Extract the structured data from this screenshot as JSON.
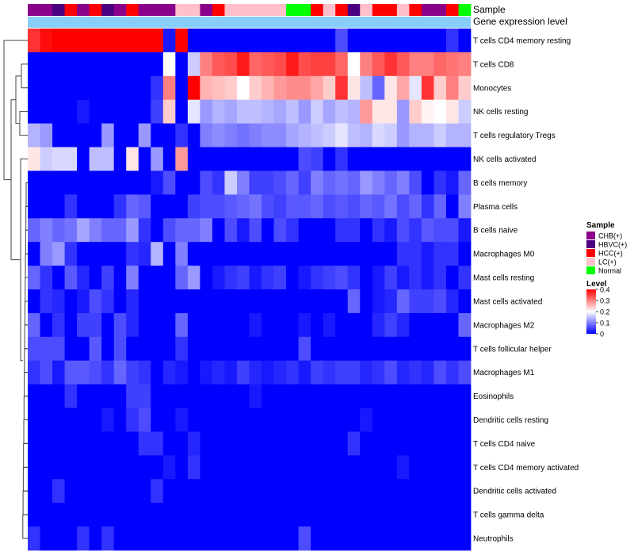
{
  "chart_data": {
    "type": "heatmap",
    "annotation_titles": [
      "Sample",
      "Gene expression level"
    ],
    "rows": [
      "T cells CD4 memory resting",
      "T cells CD8",
      "Monocytes",
      "NK cells resting",
      "T cells regulatory  Tregs",
      "NK cells activated",
      "B cells memory",
      "Plasma cells",
      "B cells naive",
      "Macrophages M0",
      "Mast cells resting",
      "Mast cells activated",
      "Macrophages M2",
      "T cells follicular helper",
      "Macrophages M1",
      "Eosinophils",
      "Dendritic cells resting",
      "T cells CD4 naive",
      "T cells CD4 memory activated",
      "Dendritic cells activated",
      "T cells gamma delta",
      "Neutrophils"
    ],
    "sample_groups": [
      "CHB(+)",
      "HBVC(+)",
      "HCC(+)",
      "LC(+)",
      "Normal"
    ],
    "group_colors": {
      "CHB(+)": "#8B008B",
      "HBVC(+)": "#4B0082",
      "HCC(+)": "#FF0000",
      "LC(+)": "#FFC0CB",
      "Normal": "#00FF00"
    },
    "column_groups": [
      "CHB(+)",
      "CHB(+)",
      "HBVC(+)",
      "HCC(+)",
      "CHB(+)",
      "HCC(+)",
      "HBVC(+)",
      "CHB(+)",
      "HCC(+)",
      "CHB(+)",
      "CHB(+)",
      "CHB(+)",
      "LC(+)",
      "LC(+)",
      "CHB(+)",
      "HCC(+)",
      "LC(+)",
      "LC(+)",
      "LC(+)",
      "LC(+)",
      "LC(+)",
      "Normal",
      "Normal",
      "HCC(+)",
      "LC(+)",
      "HCC(+)",
      "HBVC(+)",
      "LC(+)",
      "HCC(+)",
      "HCC(+)",
      "LC(+)",
      "HCC(+)",
      "CHB(+)",
      "CHB(+)",
      "HCC(+)",
      "Normal"
    ],
    "values": [
      [
        0.36,
        0.39,
        0.42,
        0.42,
        0.42,
        0.42,
        0.42,
        0.42,
        0.42,
        0.42,
        0.42,
        0.02,
        0.4,
        0,
        0,
        0,
        0,
        0,
        0,
        0,
        0,
        0,
        0,
        0,
        0,
        0.06,
        0,
        0,
        0,
        0,
        0,
        0,
        0,
        0,
        0.04,
        0
      ],
      [
        0,
        0,
        0,
        0,
        0,
        0,
        0,
        0,
        0,
        0,
        0,
        0.2,
        0,
        0.16,
        0.3,
        0.33,
        0.34,
        0.38,
        0.32,
        0.33,
        0.34,
        0.38,
        0.34,
        0.35,
        0.35,
        0.32,
        0.2,
        0.3,
        0.33,
        0.36,
        0.33,
        0.3,
        0.3,
        0.32,
        0.31,
        0.3
      ],
      [
        0,
        0,
        0,
        0,
        0,
        0,
        0,
        0,
        0,
        0,
        0.04,
        0.3,
        0,
        0.4,
        0.26,
        0.25,
        0.24,
        0.2,
        0.24,
        0.26,
        0.28,
        0.29,
        0.29,
        0.27,
        0.24,
        0.36,
        0.22,
        0.15,
        0.08,
        0.22,
        0.27,
        0.18,
        0.36,
        0.24,
        0.3,
        0.24
      ],
      [
        0,
        0,
        0,
        0,
        0.02,
        0,
        0,
        0,
        0,
        0,
        0.05,
        0.24,
        0,
        0.18,
        0.12,
        0.14,
        0.13,
        0.15,
        0.15,
        0.14,
        0.13,
        0.15,
        0.12,
        0.16,
        0.13,
        0.15,
        0.14,
        0.28,
        0.22,
        0.22,
        0.12,
        0.24,
        0.21,
        0.2,
        0.22,
        0.16
      ],
      [
        0.14,
        0.12,
        0,
        0,
        0,
        0,
        0.12,
        0,
        0,
        0.12,
        0,
        0,
        0.04,
        0,
        0.1,
        0.11,
        0.1,
        0.09,
        0.1,
        0.11,
        0.11,
        0.13,
        0.14,
        0.15,
        0.16,
        0.18,
        0.15,
        0.14,
        0.17,
        0.16,
        0.12,
        0.14,
        0.14,
        0.16,
        0.14,
        0.14
      ],
      [
        0.22,
        0.16,
        0.17,
        0.17,
        0,
        0.15,
        0.15,
        0,
        0.22,
        0,
        0.12,
        0,
        0.28,
        0,
        0,
        0,
        0,
        0,
        0,
        0,
        0,
        0,
        0.06,
        0.05,
        0,
        0.04,
        0,
        0,
        0,
        0,
        0,
        0,
        0,
        0,
        0,
        0
      ],
      [
        0,
        0,
        0,
        0,
        0,
        0,
        0,
        0,
        0,
        0,
        0.02,
        0.06,
        0,
        0,
        0.06,
        0.04,
        0.16,
        0.1,
        0.05,
        0.05,
        0.06,
        0.08,
        0.05,
        0.1,
        0.08,
        0.09,
        0.08,
        0.12,
        0.1,
        0.08,
        0.1,
        0.06,
        0,
        0.04,
        0.02,
        0.08
      ],
      [
        0,
        0,
        0,
        0.04,
        0,
        0,
        0,
        0.04,
        0.08,
        0.07,
        0,
        0,
        0,
        0.05,
        0.06,
        0.06,
        0.07,
        0.08,
        0.09,
        0.06,
        0.05,
        0.07,
        0.07,
        0.08,
        0.06,
        0.07,
        0.06,
        0.08,
        0.07,
        0.09,
        0.06,
        0.08,
        0.04,
        0.08,
        0,
        0.1
      ],
      [
        0.08,
        0.1,
        0.08,
        0.09,
        0.13,
        0.1,
        0.08,
        0.08,
        0.12,
        0.04,
        0,
        0.06,
        0.08,
        0.08,
        0.1,
        0,
        0.06,
        0.02,
        0.06,
        0,
        0.06,
        0.04,
        0,
        0,
        0,
        0.04,
        0.04,
        0,
        0.04,
        0.02,
        0.06,
        0.04,
        0.07,
        0.06,
        0.06,
        0.02
      ],
      [
        0,
        0.1,
        0.12,
        0.04,
        0,
        0,
        0,
        0,
        0.04,
        0.03,
        0.14,
        0,
        0.1,
        0,
        0,
        0,
        0,
        0,
        0,
        0,
        0,
        0,
        0,
        0,
        0,
        0,
        0,
        0,
        0,
        0,
        0.04,
        0.04,
        0.02,
        0.04,
        0.04,
        0
      ],
      [
        0.08,
        0.04,
        0,
        0.07,
        0.03,
        0,
        0.05,
        0,
        0.1,
        0,
        0,
        0,
        0.08,
        0.12,
        0,
        0.02,
        0.04,
        0.05,
        0.02,
        0.04,
        0.05,
        0,
        0.02,
        0.04,
        0.05,
        0.06,
        0.04,
        0,
        0.02,
        0.05,
        0.02,
        0.04,
        0.02,
        0.04,
        0,
        0.04
      ],
      [
        0,
        0.04,
        0.03,
        0,
        0.02,
        0.06,
        0.04,
        0,
        0.03,
        0,
        0,
        0,
        0,
        0,
        0,
        0,
        0,
        0,
        0,
        0,
        0,
        0,
        0,
        0,
        0,
        0,
        0.08,
        0,
        0.02,
        0.03,
        0.08,
        0.05,
        0.05,
        0.06,
        0.03,
        0
      ],
      [
        0.08,
        0,
        0.04,
        0,
        0.05,
        0.05,
        0,
        0.06,
        0.03,
        0,
        0,
        0,
        0.08,
        0,
        0,
        0,
        0,
        0,
        0.02,
        0,
        0,
        0,
        0.02,
        0,
        0.02,
        0,
        0,
        0,
        0.03,
        0.05,
        0.03,
        0,
        0,
        0,
        0,
        0.08
      ],
      [
        0.06,
        0.06,
        0.06,
        0,
        0,
        0.07,
        0,
        0.06,
        0,
        0,
        0,
        0,
        0.04,
        0,
        0,
        0,
        0,
        0,
        0,
        0,
        0,
        0,
        0.06,
        0,
        0,
        0,
        0,
        0,
        0,
        0,
        0,
        0,
        0,
        0,
        0,
        0
      ],
      [
        0.04,
        0.06,
        0.02,
        0.07,
        0.07,
        0.06,
        0.04,
        0.08,
        0.05,
        0.04,
        0,
        0.03,
        0.02,
        0,
        0.02,
        0.03,
        0.02,
        0.05,
        0.03,
        0.02,
        0.03,
        0.04,
        0.02,
        0.05,
        0.04,
        0.05,
        0.05,
        0.03,
        0.04,
        0.06,
        0.03,
        0.04,
        0.03,
        0.06,
        0.04,
        0.06
      ],
      [
        0,
        0,
        0,
        0.04,
        0,
        0,
        0,
        0,
        0.05,
        0.05,
        0,
        0,
        0,
        0,
        0,
        0,
        0,
        0,
        0.02,
        0,
        0,
        0,
        0,
        0,
        0,
        0,
        0,
        0,
        0,
        0,
        0,
        0,
        0,
        0,
        0,
        0
      ],
      [
        0,
        0,
        0,
        0,
        0,
        0,
        0.02,
        0,
        0.04,
        0.06,
        0,
        0,
        0.02,
        0,
        0,
        0,
        0,
        0,
        0,
        0,
        0,
        0,
        0,
        0,
        0,
        0,
        0,
        0.02,
        0,
        0,
        0,
        0,
        0,
        0,
        0,
        0
      ],
      [
        0,
        0,
        0,
        0,
        0,
        0,
        0,
        0,
        0,
        0.04,
        0.04,
        0,
        0,
        0.03,
        0,
        0,
        0,
        0,
        0,
        0,
        0,
        0,
        0,
        0,
        0,
        0,
        0.04,
        0,
        0,
        0,
        0,
        0,
        0,
        0,
        0,
        0
      ],
      [
        0,
        0,
        0,
        0,
        0,
        0,
        0,
        0,
        0,
        0,
        0,
        0.02,
        0,
        0.04,
        0,
        0,
        0,
        0,
        0,
        0,
        0,
        0,
        0,
        0,
        0,
        0,
        0,
        0,
        0,
        0,
        0.02,
        0,
        0,
        0,
        0,
        0
      ],
      [
        0,
        0,
        0.04,
        0,
        0,
        0,
        0,
        0,
        0,
        0,
        0.04,
        0,
        0,
        0,
        0,
        0,
        0,
        0,
        0,
        0,
        0,
        0,
        0,
        0,
        0,
        0,
        0,
        0,
        0,
        0,
        0,
        0,
        0,
        0,
        0,
        0
      ],
      [
        0,
        0,
        0,
        0,
        0,
        0,
        0,
        0,
        0,
        0,
        0,
        0,
        0,
        0,
        0,
        0,
        0,
        0,
        0,
        0,
        0,
        0,
        0,
        0,
        0,
        0,
        0,
        0,
        0,
        0,
        0,
        0,
        0,
        0,
        0,
        0
      ],
      [
        0.04,
        0,
        0,
        0,
        0.04,
        0,
        0.04,
        0,
        0,
        0,
        0,
        0,
        0,
        0,
        0,
        0,
        0,
        0,
        0,
        0,
        0,
        0,
        0.06,
        0,
        0,
        0,
        0,
        0,
        0,
        0,
        0,
        0,
        0,
        0,
        0,
        0
      ]
    ],
    "legend": {
      "sample_title": "Sample",
      "level_title": "Level",
      "level_ticks": [
        "0.4",
        "0.3",
        "0.2",
        "0.1",
        "0"
      ],
      "range": [
        0,
        0.4
      ]
    },
    "colors": {
      "low": "#0000FF",
      "mid": "#FFFFFF",
      "high": "#FF0000",
      "expr_bar": "#87CEFA",
      "dendrogram": "#444444"
    }
  }
}
